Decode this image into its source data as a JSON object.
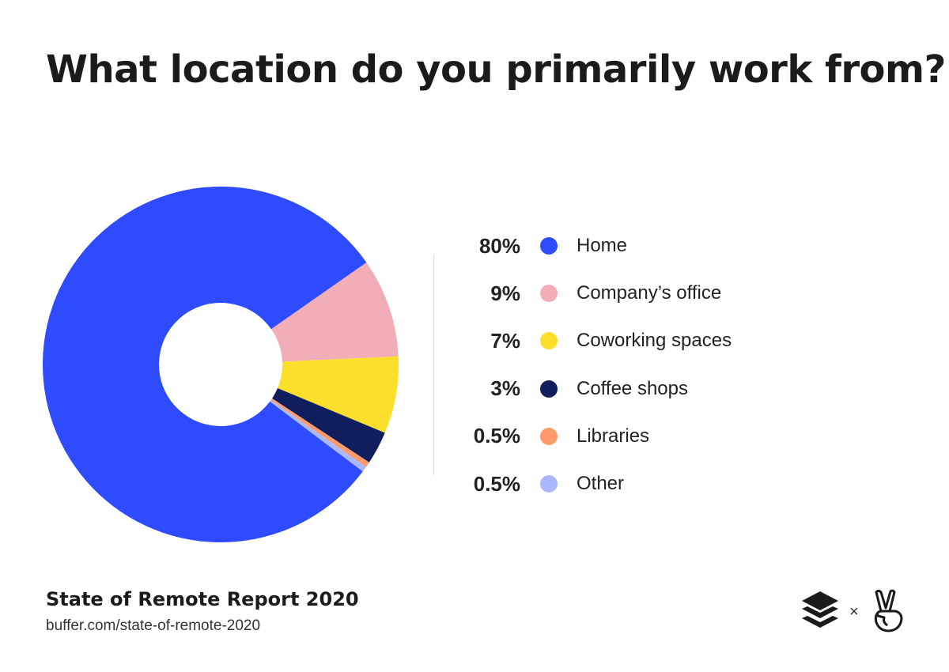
{
  "title": "What location do you primarily work from?",
  "chart_data": {
    "type": "pie",
    "style": "donut",
    "start_angle_deg_from_top": 55,
    "order": "clockwise",
    "slices": [
      {
        "label": "Company’s office",
        "value": 9,
        "pct_label": "9%",
        "color": "#F1AEB7"
      },
      {
        "label": "Coworking spaces",
        "value": 7,
        "pct_label": "7%",
        "color": "#FBDF2A"
      },
      {
        "label": "Coffee shops",
        "value": 3,
        "pct_label": "3%",
        "color": "#111E5E"
      },
      {
        "label": "Libraries",
        "value": 0.5,
        "pct_label": "0.5%",
        "color": "#FF9A6A"
      },
      {
        "label": "Other",
        "value": 0.5,
        "pct_label": "0.5%",
        "color": "#AAB8FF"
      },
      {
        "label": "Home",
        "value": 80,
        "pct_label": "80%",
        "color": "#2E4BFF"
      }
    ],
    "legend_order": [
      5,
      0,
      1,
      2,
      3,
      4
    ],
    "legend_placement": "right"
  },
  "footer": {
    "source": "State of Remote Report 2020",
    "url": "buffer.com/state-of-remote-2020",
    "logos": [
      "buffer-logo",
      "angellist-logo"
    ],
    "separator": "×"
  }
}
